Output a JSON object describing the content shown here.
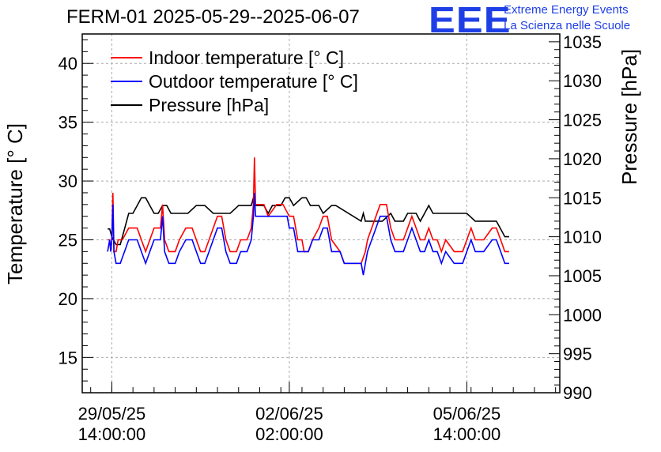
{
  "header": {
    "title": "FERM-01 2025-05-29--2025-06-07",
    "logo_text": "EEE",
    "logo_line1": "Extreme Energy Events",
    "logo_line2": "La Scienza nelle Scuole"
  },
  "chart_data": {
    "type": "line",
    "title": "FERM-01 2025-05-29--2025-06-07",
    "ylabel": "Temperature [° C]",
    "y2label": "Pressure [hPa]",
    "xlabel": "",
    "ylim": [
      12,
      42.5
    ],
    "y2lim": [
      990,
      1036
    ],
    "xlim": [
      "2025-05-29 00:00",
      "2025-06-07 10:00"
    ],
    "yticks": [
      15,
      20,
      25,
      30,
      35,
      40
    ],
    "y2ticks": [
      990,
      995,
      1000,
      1005,
      1010,
      1015,
      1020,
      1025,
      1030,
      1035
    ],
    "xticks": [
      {
        "t": "2025-05-29 14:00",
        "line1": "29/05/25",
        "line2": "14:00:00"
      },
      {
        "t": "2025-06-02 02:00",
        "line1": "02/06/25",
        "line2": "02:00:00"
      },
      {
        "t": "2025-06-05 14:00",
        "line1": "05/06/25",
        "line2": "14:00:00"
      }
    ],
    "grid": true,
    "legend_position": "top-left",
    "series": [
      {
        "name": "Indoor temperature [° C]",
        "color": "#ff0000",
        "axis": "left",
        "points": [
          [
            "2025-05-29 12:00",
            25
          ],
          [
            "2025-05-29 13:00",
            25
          ],
          [
            "2025-05-29 13:30",
            24
          ],
          [
            "2025-05-29 14:00",
            25
          ],
          [
            "2025-05-29 14:30",
            29
          ],
          [
            "2025-05-29 15:00",
            24
          ],
          [
            "2025-05-29 16:00",
            24
          ],
          [
            "2025-05-29 17:00",
            25
          ],
          [
            "2025-05-29 19:00",
            25
          ],
          [
            "2025-05-29 22:00",
            26
          ],
          [
            "2025-05-30 02:00",
            26
          ],
          [
            "2025-05-30 04:00",
            25
          ],
          [
            "2025-05-30 06:00",
            24
          ],
          [
            "2025-05-30 08:00",
            25
          ],
          [
            "2025-05-30 10:00",
            26
          ],
          [
            "2025-05-30 13:00",
            26
          ],
          [
            "2025-05-30 14:00",
            28
          ],
          [
            "2025-05-30 15:00",
            25
          ],
          [
            "2025-05-30 17:00",
            24
          ],
          [
            "2025-05-30 20:00",
            24
          ],
          [
            "2025-05-30 22:00",
            25
          ],
          [
            "2025-05-31 01:00",
            26
          ],
          [
            "2025-05-31 04:00",
            26
          ],
          [
            "2025-05-31 06:00",
            25
          ],
          [
            "2025-05-31 08:00",
            24
          ],
          [
            "2025-05-31 10:00",
            24
          ],
          [
            "2025-05-31 12:00",
            25
          ],
          [
            "2025-05-31 14:00",
            26
          ],
          [
            "2025-05-31 16:00",
            27
          ],
          [
            "2025-05-31 18:00",
            27
          ],
          [
            "2025-05-31 20:00",
            25
          ],
          [
            "2025-05-31 22:00",
            24
          ],
          [
            "2025-06-01 01:00",
            24
          ],
          [
            "2025-06-01 03:00",
            25
          ],
          [
            "2025-06-01 06:00",
            25
          ],
          [
            "2025-06-01 08:00",
            26
          ],
          [
            "2025-06-01 09:00",
            28
          ],
          [
            "2025-06-01 09:30",
            32
          ],
          [
            "2025-06-01 10:00",
            28
          ],
          [
            "2025-06-01 12:00",
            28
          ],
          [
            "2025-06-01 14:00",
            28
          ],
          [
            "2025-06-01 16:00",
            27
          ],
          [
            "2025-06-01 20:00",
            28
          ],
          [
            "2025-06-01 23:00",
            28
          ],
          [
            "2025-06-02 02:00",
            27
          ],
          [
            "2025-06-02 04:00",
            27
          ],
          [
            "2025-06-02 06:00",
            25
          ],
          [
            "2025-06-02 08:00",
            25
          ],
          [
            "2025-06-02 09:00",
            24
          ],
          [
            "2025-06-02 11:00",
            24
          ],
          [
            "2025-06-02 13:00",
            25
          ],
          [
            "2025-06-02 16:00",
            26
          ],
          [
            "2025-06-02 18:00",
            27
          ],
          [
            "2025-06-02 20:00",
            27
          ],
          [
            "2025-06-02 22:00",
            25
          ],
          [
            "2025-06-03 02:00",
            24
          ],
          [
            "2025-06-03 04:00",
            23
          ],
          [
            "2025-06-03 12:00",
            23
          ],
          [
            "2025-06-03 14:00",
            24
          ],
          [
            "2025-06-03 15:00",
            25
          ],
          [
            "2025-06-03 17:00",
            26
          ],
          [
            "2025-06-03 19:00",
            27
          ],
          [
            "2025-06-03 21:00",
            28
          ],
          [
            "2025-06-04 00:00",
            28
          ],
          [
            "2025-06-04 02:00",
            26
          ],
          [
            "2025-06-04 04:00",
            25
          ],
          [
            "2025-06-04 07:00",
            25
          ],
          [
            "2025-06-04 08:00",
            25
          ],
          [
            "2025-06-04 10:00",
            26
          ],
          [
            "2025-06-04 12:00",
            27
          ],
          [
            "2025-06-04 14:00",
            26
          ],
          [
            "2025-06-04 16:00",
            25
          ],
          [
            "2025-06-04 18:00",
            25
          ],
          [
            "2025-06-04 20:00",
            26
          ],
          [
            "2025-06-04 22:00",
            25
          ],
          [
            "2025-06-05 00:00",
            25
          ],
          [
            "2025-06-05 02:00",
            24
          ],
          [
            "2025-06-05 04:00",
            25
          ],
          [
            "2025-06-05 08:00",
            24
          ],
          [
            "2025-06-05 12:00",
            24
          ],
          [
            "2025-06-05 14:00",
            25
          ],
          [
            "2025-06-05 16:00",
            26
          ],
          [
            "2025-06-05 18:00",
            25
          ],
          [
            "2025-06-05 22:00",
            25
          ],
          [
            "2025-06-06 02:00",
            26
          ],
          [
            "2025-06-06 04:00",
            26
          ],
          [
            "2025-06-06 06:00",
            25
          ],
          [
            "2025-06-06 08:00",
            24
          ],
          [
            "2025-06-06 10:00",
            24
          ]
        ]
      },
      {
        "name": "Outdoor temperature [° C]",
        "color": "#0000ff",
        "axis": "left",
        "points": [
          [
            "2025-05-29 12:00",
            24
          ],
          [
            "2025-05-29 13:00",
            25
          ],
          [
            "2025-05-29 13:30",
            24
          ],
          [
            "2025-05-29 14:00",
            25
          ],
          [
            "2025-05-29 14:30",
            28
          ],
          [
            "2025-05-29 15:00",
            24
          ],
          [
            "2025-05-29 16:00",
            23
          ],
          [
            "2025-05-29 18:00",
            23
          ],
          [
            "2025-05-29 20:00",
            24
          ],
          [
            "2025-05-29 22:00",
            25
          ],
          [
            "2025-05-30 02:00",
            25
          ],
          [
            "2025-05-30 04:00",
            24
          ],
          [
            "2025-05-30 06:00",
            23
          ],
          [
            "2025-05-30 08:00",
            24
          ],
          [
            "2025-05-30 10:00",
            25
          ],
          [
            "2025-05-30 13:00",
            25
          ],
          [
            "2025-05-30 14:00",
            27
          ],
          [
            "2025-05-30 15:00",
            24
          ],
          [
            "2025-05-30 17:00",
            23
          ],
          [
            "2025-05-30 20:00",
            23
          ],
          [
            "2025-05-30 22:00",
            24
          ],
          [
            "2025-05-31 01:00",
            25
          ],
          [
            "2025-05-31 04:00",
            25
          ],
          [
            "2025-05-31 06:00",
            24
          ],
          [
            "2025-05-31 08:00",
            23
          ],
          [
            "2025-05-31 10:00",
            23
          ],
          [
            "2025-05-31 12:00",
            24
          ],
          [
            "2025-05-31 14:00",
            25
          ],
          [
            "2025-05-31 16:00",
            26
          ],
          [
            "2025-05-31 18:00",
            26
          ],
          [
            "2025-05-31 20:00",
            24
          ],
          [
            "2025-05-31 22:00",
            23
          ],
          [
            "2025-06-01 01:00",
            23
          ],
          [
            "2025-06-01 03:00",
            24
          ],
          [
            "2025-06-01 06:00",
            24
          ],
          [
            "2025-06-01 08:00",
            25
          ],
          [
            "2025-06-01 09:00",
            27
          ],
          [
            "2025-06-01 09:30",
            29
          ],
          [
            "2025-06-01 10:00",
            27
          ],
          [
            "2025-06-01 14:00",
            27
          ],
          [
            "2025-06-01 20:00",
            27
          ],
          [
            "2025-06-02 01:00",
            27
          ],
          [
            "2025-06-02 02:00",
            26
          ],
          [
            "2025-06-02 04:00",
            26
          ],
          [
            "2025-06-02 06:00",
            24
          ],
          [
            "2025-06-02 08:00",
            24
          ],
          [
            "2025-06-02 09:00",
            24
          ],
          [
            "2025-06-02 11:00",
            24
          ],
          [
            "2025-06-02 13:00",
            25
          ],
          [
            "2025-06-02 16:00",
            25
          ],
          [
            "2025-06-02 18:00",
            26
          ],
          [
            "2025-06-02 20:00",
            26
          ],
          [
            "2025-06-02 22:00",
            24
          ],
          [
            "2025-06-03 02:00",
            24
          ],
          [
            "2025-06-03 04:00",
            23
          ],
          [
            "2025-06-03 12:00",
            23
          ],
          [
            "2025-06-03 13:00",
            22
          ],
          [
            "2025-06-03 14:00",
            23
          ],
          [
            "2025-06-03 15:00",
            24
          ],
          [
            "2025-06-03 17:00",
            25
          ],
          [
            "2025-06-03 19:00",
            26
          ],
          [
            "2025-06-03 21:00",
            27
          ],
          [
            "2025-06-04 00:00",
            27
          ],
          [
            "2025-06-04 02:00",
            25
          ],
          [
            "2025-06-04 04:00",
            24
          ],
          [
            "2025-06-04 08:00",
            24
          ],
          [
            "2025-06-04 10:00",
            25
          ],
          [
            "2025-06-04 12:00",
            26
          ],
          [
            "2025-06-04 14:00",
            25
          ],
          [
            "2025-06-04 16:00",
            24
          ],
          [
            "2025-06-04 18:00",
            24
          ],
          [
            "2025-06-04 20:00",
            25
          ],
          [
            "2025-06-04 22:00",
            24
          ],
          [
            "2025-06-05 00:00",
            24
          ],
          [
            "2025-06-05 02:00",
            23
          ],
          [
            "2025-06-05 04:00",
            24
          ],
          [
            "2025-06-05 08:00",
            23
          ],
          [
            "2025-06-05 12:00",
            23
          ],
          [
            "2025-06-05 14:00",
            24
          ],
          [
            "2025-06-05 16:00",
            25
          ],
          [
            "2025-06-05 18:00",
            24
          ],
          [
            "2025-06-05 22:00",
            24
          ],
          [
            "2025-06-06 02:00",
            25
          ],
          [
            "2025-06-06 04:00",
            25
          ],
          [
            "2025-06-06 06:00",
            24
          ],
          [
            "2025-06-06 08:00",
            23
          ],
          [
            "2025-06-06 10:00",
            23
          ]
        ]
      },
      {
        "name": "Pressure [hPa]",
        "color": "#000000",
        "axis": "right",
        "points": [
          [
            "2025-05-29 12:00",
            1011
          ],
          [
            "2025-05-29 13:00",
            1011
          ],
          [
            "2025-05-29 14:00",
            1010
          ],
          [
            "2025-05-29 16:00",
            1009
          ],
          [
            "2025-05-29 18:00",
            1009
          ],
          [
            "2025-05-29 20:00",
            1011
          ],
          [
            "2025-05-29 22:00",
            1013
          ],
          [
            "2025-05-30 00:00",
            1013
          ],
          [
            "2025-05-30 02:00",
            1014
          ],
          [
            "2025-05-30 04:00",
            1015
          ],
          [
            "2025-05-30 06:00",
            1015
          ],
          [
            "2025-05-30 08:00",
            1014
          ],
          [
            "2025-05-30 10:00",
            1013
          ],
          [
            "2025-05-30 12:00",
            1013
          ],
          [
            "2025-05-30 14:00",
            1014
          ],
          [
            "2025-05-30 16:00",
            1014
          ],
          [
            "2025-05-30 18:00",
            1013
          ],
          [
            "2025-05-30 20:00",
            1013
          ],
          [
            "2025-05-30 22:00",
            1013
          ],
          [
            "2025-05-31 02:00",
            1013
          ],
          [
            "2025-05-31 06:00",
            1014
          ],
          [
            "2025-05-31 10:00",
            1014
          ],
          [
            "2025-05-31 14:00",
            1013
          ],
          [
            "2025-05-31 18:00",
            1013
          ],
          [
            "2025-05-31 22:00",
            1013
          ],
          [
            "2025-06-01 02:00",
            1014
          ],
          [
            "2025-06-01 06:00",
            1014
          ],
          [
            "2025-06-01 08:00",
            1014
          ],
          [
            "2025-06-01 09:00",
            1015
          ],
          [
            "2025-06-01 10:00",
            1014
          ],
          [
            "2025-06-01 14:00",
            1014
          ],
          [
            "2025-06-01 16:00",
            1013
          ],
          [
            "2025-06-01 18:00",
            1014
          ],
          [
            "2025-06-01 22:00",
            1014
          ],
          [
            "2025-06-02 00:00",
            1015
          ],
          [
            "2025-06-02 02:00",
            1015
          ],
          [
            "2025-06-02 04:00",
            1014
          ],
          [
            "2025-06-02 08:00",
            1015
          ],
          [
            "2025-06-02 10:00",
            1015
          ],
          [
            "2025-06-02 12:00",
            1014
          ],
          [
            "2025-06-02 16:00",
            1014
          ],
          [
            "2025-06-02 18:00",
            1013
          ],
          [
            "2025-06-02 22:00",
            1014
          ],
          [
            "2025-06-03 00:00",
            1014
          ],
          [
            "2025-06-03 12:00",
            1012
          ],
          [
            "2025-06-03 13:00",
            1013
          ],
          [
            "2025-06-03 14:00",
            1012
          ],
          [
            "2025-06-03 18:00",
            1012
          ],
          [
            "2025-06-03 22:00",
            1012
          ],
          [
            "2025-06-04 02:00",
            1013
          ],
          [
            "2025-06-04 04:00",
            1012
          ],
          [
            "2025-06-04 08:00",
            1012
          ],
          [
            "2025-06-04 10:00",
            1013
          ],
          [
            "2025-06-04 14:00",
            1013
          ],
          [
            "2025-06-04 16:00",
            1012
          ],
          [
            "2025-06-04 18:00",
            1013
          ],
          [
            "2025-06-04 20:00",
            1014
          ],
          [
            "2025-06-04 22:00",
            1013
          ],
          [
            "2025-06-05 02:00",
            1013
          ],
          [
            "2025-06-05 06:00",
            1013
          ],
          [
            "2025-06-05 10:00",
            1013
          ],
          [
            "2025-06-05 14:00",
            1013
          ],
          [
            "2025-06-05 18:00",
            1012
          ],
          [
            "2025-06-06 00:00",
            1012
          ],
          [
            "2025-06-06 04:00",
            1012
          ],
          [
            "2025-06-06 06:00",
            1011
          ],
          [
            "2025-06-06 08:00",
            1010
          ],
          [
            "2025-06-06 10:00",
            1010
          ]
        ]
      }
    ]
  }
}
